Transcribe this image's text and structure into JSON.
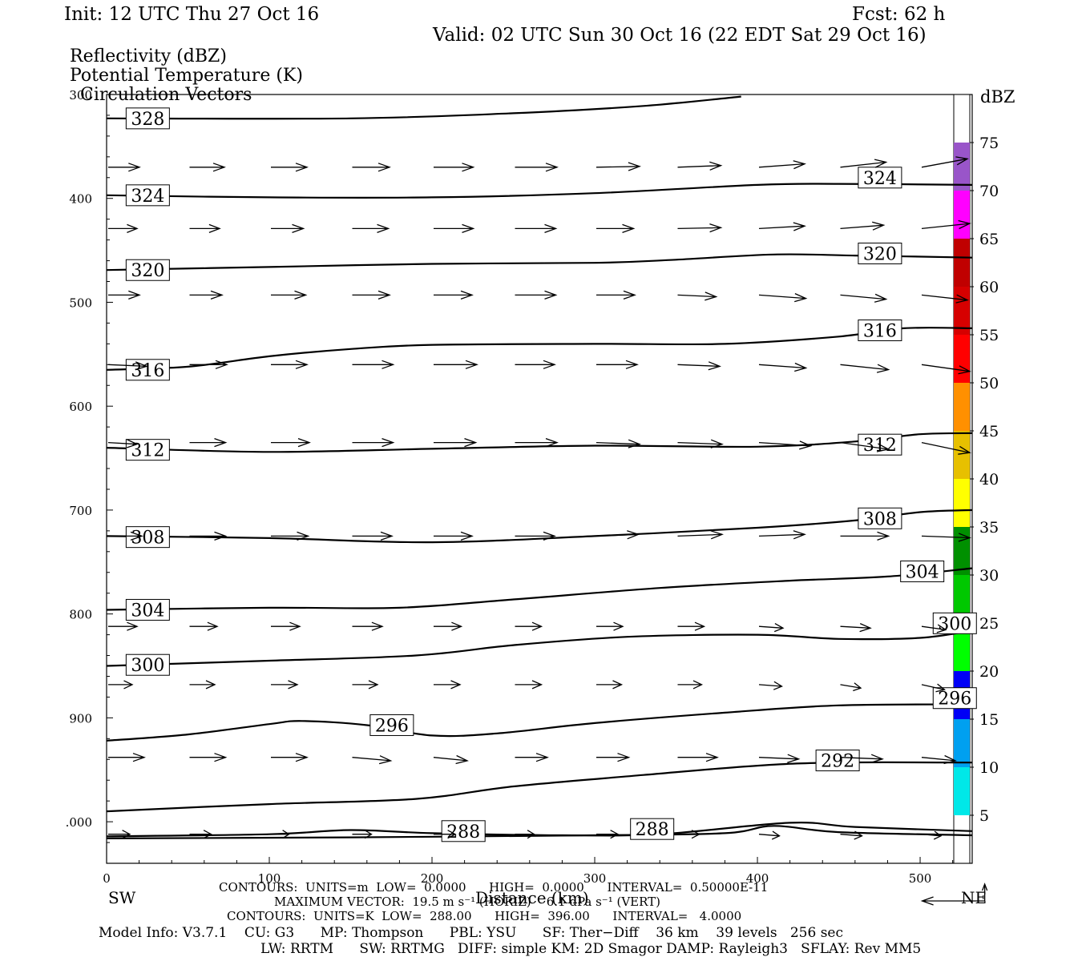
{
  "header": {
    "init": "Init: 12 UTC Thu 27 Oct 16",
    "fcst": "Fcst:   62 h",
    "valid": "Valid: 02 UTC Sun 30 Oct 16 (22 EDT Sat 29 Oct 16)"
  },
  "fields": [
    "Reflectivity (dBZ)",
    "Potential Temperature (K)",
    "Circulation Vectors"
  ],
  "chart_data": {
    "type": "cross-section",
    "xlabel": "Distance (km)",
    "xlim": [
      0,
      532
    ],
    "x_ticks": [
      0,
      100,
      200,
      300,
      400,
      500
    ],
    "ylabel": "",
    "ylim": [
      1040,
      300
    ],
    "y_scale": "linear-inverted",
    "y_ticks": [
      300,
      400,
      500,
      600,
      700,
      800,
      900
    ],
    "y_tick_labels": [
      "300",
      "400",
      "500",
      "600",
      "700",
      "800",
      "900",
      ".000"
    ],
    "y_extra_tick": 1000,
    "endpoints": {
      "left": "SW",
      "right": "NE"
    },
    "colorbar": {
      "unit": "dBZ",
      "labels": [
        "75",
        "70",
        "65",
        "60",
        "55",
        "50",
        "45",
        "40",
        "35",
        "30",
        "25",
        "20",
        "15",
        "10",
        "5"
      ],
      "bins": [
        {
          "from": 5,
          "to": 10,
          "color": "#00e8e8"
        },
        {
          "from": 10,
          "to": 15,
          "color": "#00a0f0"
        },
        {
          "from": 15,
          "to": 20,
          "color": "#0000f6"
        },
        {
          "from": 20,
          "to": 25,
          "color": "#00ff00"
        },
        {
          "from": 25,
          "to": 30,
          "color": "#00c800"
        },
        {
          "from": 30,
          "to": 35,
          "color": "#009000"
        },
        {
          "from": 35,
          "to": 40,
          "color": "#ffff00"
        },
        {
          "from": 40,
          "to": 45,
          "color": "#e7c000"
        },
        {
          "from": 45,
          "to": 50,
          "color": "#ff9000"
        },
        {
          "from": 50,
          "to": 55,
          "color": "#ff0000"
        },
        {
          "from": 55,
          "to": 60,
          "color": "#d60000"
        },
        {
          "from": 60,
          "to": 65,
          "color": "#c00000"
        },
        {
          "from": 65,
          "to": 70,
          "color": "#ff00ff"
        },
        {
          "from": 70,
          "to": 75,
          "color": "#9955c9"
        }
      ]
    },
    "theta_contours": [
      {
        "label": "328",
        "points": [
          [
            0,
            323
          ],
          [
            150,
            323
          ],
          [
            250,
            318
          ],
          [
            330,
            311
          ],
          [
            390,
            302
          ]
        ],
        "label_at": [
          12,
          323
        ]
      },
      {
        "label": "324",
        "points": [
          [
            0,
            397
          ],
          [
            100,
            399
          ],
          [
            200,
            399
          ],
          [
            300,
            395
          ],
          [
            400,
            387
          ],
          [
            450,
            386
          ],
          [
            532,
            387
          ]
        ],
        "label_at": [
          12,
          397
        ],
        "label_at2": [
          462,
          380
        ]
      },
      {
        "label": "320",
        "points": [
          [
            0,
            469
          ],
          [
            100,
            466
          ],
          [
            200,
            463
          ],
          [
            300,
            462
          ],
          [
            350,
            459
          ],
          [
            410,
            454
          ],
          [
            460,
            455
          ],
          [
            532,
            457
          ]
        ],
        "label_at": [
          12,
          469
        ],
        "label_at2": [
          462,
          453
        ]
      },
      {
        "label": "316",
        "points": [
          [
            0,
            565
          ],
          [
            50,
            562
          ],
          [
            100,
            552
          ],
          [
            150,
            545
          ],
          [
            200,
            541
          ],
          [
            300,
            540
          ],
          [
            380,
            540
          ],
          [
            450,
            533
          ],
          [
            490,
            525
          ],
          [
            532,
            525
          ]
        ],
        "label_at": [
          12,
          565
        ],
        "label_at2": [
          462,
          527
        ]
      },
      {
        "label": "312",
        "points": [
          [
            0,
            640
          ],
          [
            100,
            644
          ],
          [
            200,
            641
          ],
          [
            300,
            638
          ],
          [
            400,
            639
          ],
          [
            460,
            634
          ],
          [
            500,
            627
          ],
          [
            532,
            626
          ]
        ],
        "label_at": [
          12,
          642
        ],
        "label_at2": [
          462,
          637
        ]
      },
      {
        "label": "308",
        "points": [
          [
            0,
            725
          ],
          [
            100,
            727
          ],
          [
            200,
            731
          ],
          [
            300,
            725
          ],
          [
            400,
            717
          ],
          [
            460,
            710
          ],
          [
            500,
            702
          ],
          [
            532,
            700
          ]
        ],
        "label_at": [
          12,
          726
        ],
        "label_at2": [
          462,
          708
        ]
      },
      {
        "label": "304",
        "points": [
          [
            0,
            796
          ],
          [
            100,
            794
          ],
          [
            180,
            794
          ],
          [
            250,
            786
          ],
          [
            340,
            775
          ],
          [
            420,
            768
          ],
          [
            480,
            764
          ],
          [
            532,
            756
          ]
        ],
        "label_at": [
          12,
          796
        ],
        "label_at2": [
          488,
          759
        ]
      },
      {
        "label": "300",
        "points": [
          [
            0,
            850
          ],
          [
            100,
            845
          ],
          [
            190,
            840
          ],
          [
            250,
            830
          ],
          [
            320,
            822
          ],
          [
            400,
            820
          ],
          [
            450,
            824
          ],
          [
            500,
            823
          ],
          [
            532,
            816
          ]
        ],
        "label_at": [
          12,
          849
        ],
        "label_at2": [
          508,
          809
        ]
      },
      {
        "label": "296",
        "points": [
          [
            0,
            922
          ],
          [
            50,
            916
          ],
          [
            100,
            906
          ],
          [
            120,
            903
          ],
          [
            160,
            907
          ],
          [
            200,
            917
          ],
          [
            240,
            915
          ],
          [
            300,
            905
          ],
          [
            380,
            895
          ],
          [
            450,
            888
          ],
          [
            532,
            887
          ]
        ],
        "label_at": [
          162,
          907
        ],
        "label_at2": [
          508,
          881
        ]
      },
      {
        "label": "292",
        "points": [
          [
            0,
            990
          ],
          [
            100,
            983
          ],
          [
            190,
            978
          ],
          [
            250,
            966
          ],
          [
            330,
            955
          ],
          [
            400,
            946
          ],
          [
            450,
            943
          ],
          [
            532,
            943
          ]
        ],
        "label_at": [
          436,
          941
        ]
      },
      {
        "label": "288",
        "points": [
          [
            0,
            1014
          ],
          [
            100,
            1012
          ],
          [
            150,
            1008
          ],
          [
            200,
            1011
          ],
          [
            280,
            1013
          ],
          [
            340,
            1012
          ],
          [
            420,
            1001
          ],
          [
            460,
            1005
          ],
          [
            532,
            1009
          ]
        ],
        "label_at": [
          206,
          1009
        ],
        "label_at2": [
          322,
          1007
        ]
      },
      {
        "label": "",
        "points": [
          [
            0,
            1016
          ],
          [
            150,
            1015
          ],
          [
            300,
            1013
          ],
          [
            380,
            1011
          ],
          [
            410,
            1004
          ],
          [
            450,
            1010
          ],
          [
            532,
            1013
          ]
        ]
      }
    ],
    "vectors": {
      "x": [
        0,
        50,
        100,
        150,
        200,
        250,
        300,
        350,
        400,
        450,
        500
      ],
      "levels": [
        {
          "p": 370,
          "u": [
            26,
            29,
            30,
            31,
            33,
            35,
            36,
            36,
            38,
            38,
            38
          ],
          "v": [
            0,
            0,
            0,
            0,
            0,
            0,
            -0.5,
            -1,
            -2,
            -3,
            -5
          ]
        },
        {
          "p": 429,
          "u": [
            24,
            25,
            27,
            30,
            33,
            34,
            31,
            36,
            38,
            36,
            40
          ],
          "v": [
            0,
            0,
            0,
            0,
            0,
            0,
            0,
            -0.5,
            -1.5,
            -2,
            -3
          ]
        },
        {
          "p": 493,
          "u": [
            26,
            27,
            29,
            31,
            32,
            34,
            32,
            32,
            39,
            38,
            38
          ],
          "v": [
            0,
            0,
            0,
            0,
            0,
            0,
            0,
            1,
            2,
            2.5,
            3
          ]
        },
        {
          "p": 560,
          "u": [
            32,
            31,
            30,
            34,
            36,
            33,
            34,
            35,
            39,
            40,
            40
          ],
          "v": [
            1,
            0,
            0,
            0,
            0,
            0,
            0,
            1,
            2,
            3,
            4
          ]
        },
        {
          "p": 635,
          "u": [
            24,
            30,
            32,
            34,
            35,
            35,
            36,
            37,
            43,
            40,
            40
          ],
          "v": [
            1,
            0,
            0,
            0,
            0,
            0,
            1,
            1,
            2,
            4,
            6
          ]
        },
        {
          "p": 725,
          "u": [
            28,
            30,
            31,
            33,
            32,
            33,
            35,
            37,
            38,
            40,
            40
          ],
          "v": [
            0,
            0,
            0,
            0,
            0,
            0,
            -1,
            -1,
            -1,
            0,
            1
          ]
        },
        {
          "p": 812,
          "u": [
            24,
            23,
            24,
            25,
            23,
            22,
            22,
            22,
            20,
            25,
            20
          ],
          "v": [
            0,
            0,
            0,
            0,
            0,
            0,
            0,
            0,
            1,
            1,
            2
          ]
        },
        {
          "p": 868,
          "u": [
            20,
            21,
            22,
            21,
            22,
            22,
            21,
            20,
            19,
            17,
            19
          ],
          "v": [
            0,
            0,
            0,
            0,
            0,
            0,
            0,
            0,
            1,
            2,
            3
          ]
        },
        {
          "p": 938,
          "u": [
            30,
            30,
            30,
            32,
            28,
            27,
            27,
            33,
            33,
            35,
            28
          ],
          "v": [
            0,
            0,
            0,
            2,
            2,
            0,
            0,
            0,
            1,
            1,
            2
          ]
        },
        {
          "p": 1012,
          "u": [
            18,
            18,
            15,
            16,
            18,
            16,
            18,
            18,
            17,
            18,
            16
          ],
          "v": [
            0,
            0,
            0,
            0,
            0,
            0,
            0,
            0,
            1,
            1,
            1
          ]
        }
      ]
    },
    "reference_vector": {
      "x": 520,
      "length": 52
    }
  },
  "footer": {
    "line1": "CONTOURS:  UNITS=m  LOW=  0.0000      HIGH=  0.0000      INTERVAL=  0.50000E-11",
    "line2": "MAXIMUM VECTOR:  19.5 m s⁻¹ (HORIZ)    6.1 dPa s⁻¹ (VERT)",
    "line3": "CONTOURS:  UNITS=K  LOW=  288.00      HIGH=  396.00      INTERVAL=   4.0000",
    "line4": "Model Info: V3.7.1    CU: G3      MP: Thompson      PBL: YSU      SF: Ther−Diff    36 km    39 levels   256 sec",
    "line5": "LW: RRTM      SW: RRTMG   DIFF: simple KM: 2D Smagor DAMP: Rayleigh3   SFLAY: Rev MM5"
  }
}
